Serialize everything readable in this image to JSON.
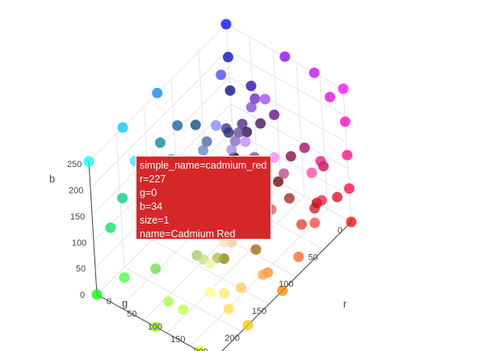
{
  "chart_data": {
    "type": "scatter3d",
    "title": "",
    "axes": {
      "x": {
        "label": "r",
        "range": [
          0,
          255
        ],
        "ticks": [
          0,
          50,
          100,
          150,
          200
        ]
      },
      "y": {
        "label": "g",
        "range": [
          0,
          255
        ],
        "ticks": [
          0,
          50,
          100,
          150,
          200
        ]
      },
      "z": {
        "label": "b",
        "range": [
          0,
          255
        ],
        "ticks": [
          0,
          50,
          100,
          150,
          200,
          250
        ]
      }
    },
    "grid": true,
    "marker_color": "rgb(r,g,b) of each point",
    "marker_opacity": 0.75,
    "points": [
      [
        227,
        0,
        34
      ],
      [
        0,
        0,
        255
      ],
      [
        255,
        0,
        255
      ],
      [
        0,
        255,
        255
      ],
      [
        255,
        255,
        0
      ],
      [
        0,
        255,
        0
      ],
      [
        255,
        0,
        0
      ],
      [
        255,
        255,
        255
      ],
      [
        0,
        0,
        0
      ],
      [
        0,
        0,
        128
      ],
      [
        0,
        0,
        192
      ],
      [
        64,
        64,
        255
      ],
      [
        128,
        128,
        255
      ],
      [
        0,
        128,
        255
      ],
      [
        0,
        192,
        255
      ],
      [
        64,
        224,
        255
      ],
      [
        128,
        255,
        255
      ],
      [
        128,
        0,
        255
      ],
      [
        160,
        64,
        255
      ],
      [
        192,
        0,
        255
      ],
      [
        192,
        128,
        255
      ],
      [
        255,
        128,
        255
      ],
      [
        224,
        0,
        224
      ],
      [
        255,
        0,
        192
      ],
      [
        255,
        64,
        160
      ],
      [
        255,
        0,
        128
      ],
      [
        220,
        20,
        120
      ],
      [
        200,
        0,
        80
      ],
      [
        255,
        0,
        64
      ],
      [
        230,
        30,
        60
      ],
      [
        200,
        20,
        20
      ],
      [
        180,
        0,
        0
      ],
      [
        255,
        64,
        64
      ],
      [
        220,
        60,
        40
      ],
      [
        255,
        128,
        0
      ],
      [
        255,
        96,
        32
      ],
      [
        240,
        140,
        40
      ],
      [
        255,
        160,
        64
      ],
      [
        255,
        192,
        0
      ],
      [
        255,
        200,
        80
      ],
      [
        255,
        224,
        64
      ],
      [
        255,
        230,
        100
      ],
      [
        255,
        255,
        128
      ],
      [
        240,
        240,
        160
      ],
      [
        224,
        255,
        0
      ],
      [
        192,
        255,
        64
      ],
      [
        160,
        255,
        64
      ],
      [
        128,
        255,
        0
      ],
      [
        96,
        224,
        64
      ],
      [
        64,
        255,
        64
      ],
      [
        0,
        224,
        96
      ],
      [
        0,
        200,
        128
      ],
      [
        64,
        192,
        160
      ],
      [
        0,
        160,
        128
      ],
      [
        32,
        128,
        96
      ],
      [
        0,
        100,
        0
      ],
      [
        32,
        64,
        32
      ],
      [
        64,
        64,
        64
      ],
      [
        128,
        128,
        128
      ],
      [
        160,
        160,
        200
      ],
      [
        192,
        192,
        192
      ],
      [
        220,
        200,
        230
      ],
      [
        200,
        160,
        200
      ],
      [
        160,
        96,
        160
      ],
      [
        128,
        64,
        128
      ],
      [
        96,
        0,
        128
      ],
      [
        64,
        0,
        96
      ],
      [
        32,
        0,
        64
      ],
      [
        48,
        48,
        128
      ],
      [
        64,
        96,
        160
      ],
      [
        96,
        128,
        192
      ],
      [
        0,
        96,
        160
      ],
      [
        0,
        64,
        128
      ],
      [
        0,
        128,
        160
      ],
      [
        64,
        160,
        192
      ],
      [
        96,
        192,
        224
      ],
      [
        160,
        224,
        240
      ],
      [
        192,
        240,
        255
      ],
      [
        128,
        224,
        192
      ],
      [
        96,
        192,
        128
      ],
      [
        160,
        200,
        96
      ],
      [
        200,
        220,
        128
      ],
      [
        180,
        180,
        80
      ],
      [
        128,
        128,
        0
      ],
      [
        160,
        96,
        0
      ],
      [
        128,
        64,
        32
      ],
      [
        200,
        128,
        96
      ],
      [
        240,
        200,
        160
      ],
      [
        255,
        224,
        192
      ],
      [
        240,
        160,
        160
      ],
      [
        255,
        192,
        192
      ],
      [
        200,
        96,
        96
      ],
      [
        160,
        32,
        32
      ],
      [
        96,
        0,
        0
      ],
      [
        128,
        0,
        64
      ],
      [
        160,
        0,
        96
      ],
      [
        192,
        64,
        128
      ],
      [
        224,
        128,
        160
      ],
      [
        255,
        160,
        200
      ],
      [
        255,
        192,
        224
      ],
      [
        224,
        160,
        255
      ],
      [
        192,
        160,
        224
      ],
      [
        160,
        128,
        224
      ],
      [
        128,
        96,
        192
      ],
      [
        96,
        64,
        160
      ],
      [
        64,
        32,
        128
      ],
      [
        32,
        32,
        96
      ],
      [
        48,
        0,
        160
      ],
      [
        96,
        32,
        192
      ],
      [
        128,
        64,
        224
      ]
    ],
    "hover": {
      "simple_name": "cadmium_red",
      "r": 227,
      "g": 0,
      "b": 34,
      "size": 1,
      "name": "Cadmium Red"
    }
  },
  "hover_lines": [
    "simple_name=cadmium_red",
    "r=227",
    "g=0",
    "b=34",
    "size=1",
    "name=Cadmium Red"
  ],
  "tick_labels": {
    "r": [
      "0",
      "50",
      "100",
      "150",
      "200"
    ],
    "g": [
      "0",
      "50",
      "100",
      "150",
      "200"
    ],
    "b": [
      "0",
      "50",
      "100",
      "150",
      "200",
      "250"
    ]
  },
  "axis_titles": {
    "r": "r",
    "g": "g",
    "b": "b"
  },
  "colors": {
    "hover_bg": "#d62728",
    "grid": "#e6e6e6",
    "axis_line": "#444444",
    "background": "#ffffff"
  }
}
